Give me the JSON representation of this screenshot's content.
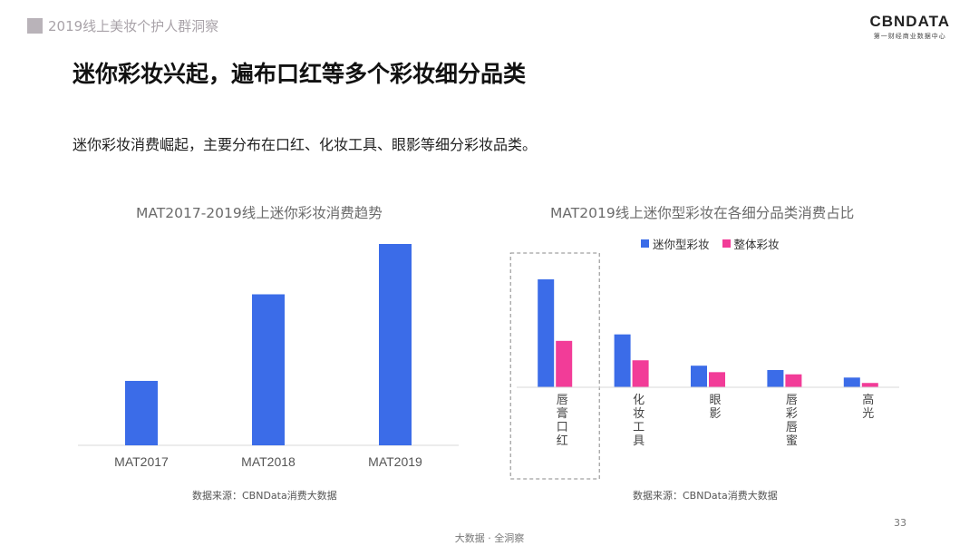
{
  "header": {
    "section_tag": "2019线上美妆个护人群洞察",
    "logo_text": "CBNDATA",
    "logo_subtext": "第一财经商业数据中心"
  },
  "headline": "迷你彩妆兴起，遍布口红等多个彩妆细分品类",
  "subtext": "迷你彩妆消费崛起，主要分布在口红、化妆工具、眼影等细分彩妆品类。",
  "footer": {
    "page_number": "33",
    "tagline": "大数据 · 全洞察"
  },
  "colors": {
    "blue": "#3b6ce8",
    "pink": "#f23c98"
  },
  "chart_data": [
    {
      "type": "bar",
      "title": "MAT2017-2019线上迷你彩妆消费趋势",
      "categories": [
        "MAT2017",
        "MAT2018",
        "MAT2019"
      ],
      "values": [
        32,
        75,
        100
      ],
      "ylim": [
        0,
        100
      ],
      "grid": false,
      "source": "数据来源：CBNData消费大数据"
    },
    {
      "type": "bar",
      "title": "MAT2019线上迷你型彩妆在各细分品类消费占比",
      "categories": [
        "唇膏口红",
        "化妆工具",
        "眼影",
        "唇彩唇蜜",
        "高光"
      ],
      "series": [
        {
          "name": "迷你型彩妆",
          "values": [
            100,
            49,
            20,
            16,
            9
          ]
        },
        {
          "name": "整体彩妆",
          "values": [
            43,
            25,
            14,
            12,
            4
          ]
        }
      ],
      "ylim": [
        0,
        100
      ],
      "grid": false,
      "legend": "top-center",
      "highlight_category": "唇膏口红",
      "source": "数据来源：CBNData消费大数据"
    }
  ]
}
